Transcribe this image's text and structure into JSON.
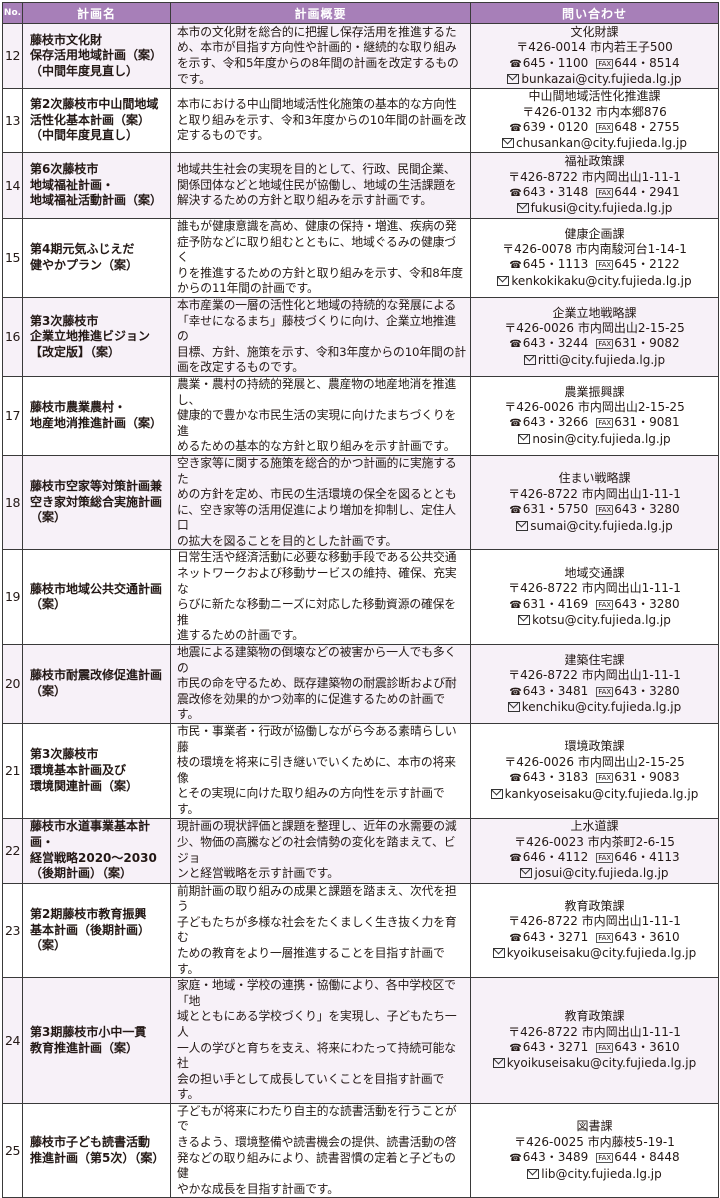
{
  "header": {
    "no": "No.",
    "name": "計画名",
    "summary": "計画概要",
    "contact": "問い合わせ"
  },
  "colors": {
    "header_bg": "#a77fb8",
    "alt_row_bg": "#f7f1f8"
  },
  "rows": [
    {
      "no": "12",
      "name": [
        "藤枝市文化財",
        "保存活用地域計画（案）",
        "（中間年度見直し）"
      ],
      "summary": [
        "本市の文化財を総合的に把握し保存活用を推進するた",
        "め、本市が目指す方向性や計画的・継続的な取り組み",
        "を示す、令和5年度からの8年間の計画を改定するもの",
        "です。"
      ],
      "dept": "文化財課",
      "address": "〒426-0014 市内若王子500",
      "tel": "645・1100",
      "fax": "644・8514",
      "email": "bunkazai@city.fujieda.lg.jp"
    },
    {
      "no": "13",
      "name": [
        "第2次藤枝市中山間地域",
        "活性化基本計画（案）",
        "（中間年度見直し）"
      ],
      "summary": [
        "本市における中山間地域活性化施策の基本的な方向性",
        "と取り組みを示す、令和3年度からの10年間の計画を改",
        "定するものです。"
      ],
      "dept": "中山間地域活性化推進課",
      "address": "〒426-0132 市内本郷876",
      "tel": "639・0120",
      "fax": "648・2755",
      "email": "chusankan@city.fujieda.lg.jp"
    },
    {
      "no": "14",
      "name": [
        "第6次藤枝市",
        "地域福祉計画・",
        "地域福祉活動計画（案）"
      ],
      "summary": [
        "地域共生社会の実現を目的として、行政、民間企業、",
        "関係団体などと地域住民が協働し、地域の生活課題を",
        "解決するための方針と取り組みを示す計画です。"
      ],
      "dept": "福祉政策課",
      "address": "〒426-8722 市内岡出山1-11-1",
      "tel": "643・3148",
      "fax": "644・2941",
      "email": "fukusi@city.fujieda.lg.jp"
    },
    {
      "no": "15",
      "name": [
        "第4期元気ふじえだ",
        "健やかプラン（案）"
      ],
      "summary": [
        "誰もが健康意識を高め、健康の保持・増進、疾病の発",
        "症予防などに取り組むとともに、地域ぐるみの健康づく",
        "りを推進するための方針と取り組みを示す、令和8年度",
        "からの11年間の計画です。"
      ],
      "dept": "健康企画課",
      "address": "〒426-0078 市内南駿河台1-14-1",
      "tel": "645・1113",
      "fax": "645・2122",
      "email": "kenkokikaku@city.fujieda.lg.jp"
    },
    {
      "no": "16",
      "name": [
        "第3次藤枝市",
        "企業立地推進ビジョン",
        "【改定版】（案）"
      ],
      "summary": [
        "本市産業の一層の活性化と地域の持続的な発展による",
        "「幸せになるまち」藤枝づくりに向け、企業立地推進の",
        "目標、方針、施策を示す、令和3年度からの10年間の計",
        "画を改定するものです。"
      ],
      "dept": "企業立地戦略課",
      "address": "〒426-0026 市内岡出山2-15-25",
      "tel": "643・3244",
      "fax": "631・9082",
      "email": "ritti@city.fujieda.lg.jp"
    },
    {
      "no": "17",
      "name": [
        "藤枝市農業農村・",
        "地産地消推進計画（案）"
      ],
      "summary": [
        "農業・農村の持続的発展と、農産物の地産地消を推進し、",
        "健康的で豊かな市民生活の実現に向けたまちづくりを進",
        "めるための基本的な方針と取り組みを示す計画です。"
      ],
      "dept": "農業振興課",
      "address": "〒426-0026 市内岡出山2-15-25",
      "tel": "643・3266",
      "fax": "631・9081",
      "email": "nosin@city.fujieda.lg.jp"
    },
    {
      "no": "18",
      "name": [
        "藤枝市空家等対策計画兼",
        "空き家対策総合実施計画",
        "（案）"
      ],
      "summary": [
        "空き家等に関する施策を総合的かつ計画的に実施するた",
        "めの方針を定め、市民の生活環境の保全を図るととも",
        "に、空き家等の活用促進により増加を抑制し、定住人口",
        "の拡大を図ることを目的とした計画です。"
      ],
      "dept": "住まい戦略課",
      "address": "〒426-8722 市内岡出山1-11-1",
      "tel": "631・5750",
      "fax": "643・3280",
      "email": "sumai@city.fujieda.lg.jp"
    },
    {
      "no": "19",
      "name": [
        "藤枝市地域公共交通計画",
        "（案）"
      ],
      "summary": [
        "日常生活や経済活動に必要な移動手段である公共交通",
        "ネットワークおよび移動サービスの維持、確保、充実な",
        "らびに新たな移動ニーズに対応した移動資源の確保を推",
        "進するための計画です。"
      ],
      "dept": "地域交通課",
      "address": "〒426-8722 市内岡出山1-11-1",
      "tel": "631・4169",
      "fax": "643・3280",
      "email": "kotsu@city.fujieda.lg.jp"
    },
    {
      "no": "20",
      "name": [
        "藤枝市耐震改修促進計画",
        "（案）"
      ],
      "summary": [
        "地震による建築物の倒壊などの被害から一人でも多くの",
        "市民の命を守るため、既存建築物の耐震診断および耐",
        "震改修を効果的かつ効率的に促進するための計画です。"
      ],
      "dept": "建築住宅課",
      "address": "〒426-8722 市内岡出山1-11-1",
      "tel": "643・3481",
      "fax": "643・3280",
      "email": "kenchiku@city.fujieda.lg.jp"
    },
    {
      "no": "21",
      "name": [
        "第3次藤枝市",
        "環境基本計画及び",
        "環境関連計画（案）"
      ],
      "summary": [
        "市民・事業者・行政が協働しながら今ある素晴らしい藤",
        "枝の環境を将来に引き継いでいくために、本市の将来像",
        "とその実現に向けた取り組みの方向性を示す計画です。"
      ],
      "dept": "環境政策課",
      "address": "〒426-0026 市内岡出山2-15-25",
      "tel": "643・3183",
      "fax": "631・9083",
      "email": "kankyoseisaku@city.fujieda.lg.jp"
    },
    {
      "no": "22",
      "name": [
        "藤枝市水道事業基本計画・",
        "経営戦略2020～2030",
        "（後期計画）（案）"
      ],
      "summary": [
        "現計画の現状評価と課題を整理し、近年の水需要の減",
        "少、物価の高騰などの社会情勢の変化を踏まえて、ビジョ",
        "ンと経営戦略を示す計画です。"
      ],
      "dept": "上水道課",
      "address": "〒426-0023 市内茶町2-6-15",
      "tel": "646・4112",
      "fax": "646・4113",
      "email": "josui@city.fujieda.lg.jp"
    },
    {
      "no": "23",
      "name": [
        "第2期藤枝市教育振興",
        "基本計画（後期計画）（案）"
      ],
      "summary": [
        "前期計画の取り組みの成果と課題を踏まえ、次代を担う",
        "子どもたちが多様な社会をたくましく生き抜く力を育む",
        "ための教育をより一層推進することを目指す計画です。"
      ],
      "dept": "教育政策課",
      "address": "〒426-8722 市内岡出山1-11-1",
      "tel": "643・3271",
      "fax": "643・3610",
      "email": "kyoikuseisaku@city.fujieda.lg.jp"
    },
    {
      "no": "24",
      "name": [
        "第3期藤枝市小中一貫",
        "教育推進計画（案）"
      ],
      "summary": [
        "家庭・地域・学校の連携・協働により、各中学校区で「地",
        "域とともにある学校づくり」を実現し、子どもたち一人",
        "一人の学びと育ちを支え、将来にわたって持続可能な社",
        "会の担い手として成長していくことを目指す計画です。"
      ],
      "dept": "教育政策課",
      "address": "〒426-8722 市内岡出山1-11-1",
      "tel": "643・3271",
      "fax": "643・3610",
      "email": "kyoikuseisaku@city.fujieda.lg.jp"
    },
    {
      "no": "25",
      "name": [
        "藤枝市子ども読書活動",
        "推進計画（第5次）（案）"
      ],
      "summary": [
        "子どもが将来にわたり自主的な読書活動を行うことがで",
        "きるよう、環境整備や読書機会の提供、読書活動の啓",
        "発などの取り組みにより、読書習慣の定着と子どもの健",
        "やかな成長を目指す計画です。"
      ],
      "dept": "図書課",
      "address": "〒426-0025 市内藤枝5-19-1",
      "tel": "643・3489",
      "fax": "644・8448",
      "email": "lib@city.fujieda.lg.jp"
    }
  ],
  "icons": {
    "tel": "phone-icon",
    "fax": "fax-icon",
    "email": "mail-icon"
  },
  "labels": {
    "tel_symbol": "☎",
    "fax_symbol": "FAX"
  }
}
